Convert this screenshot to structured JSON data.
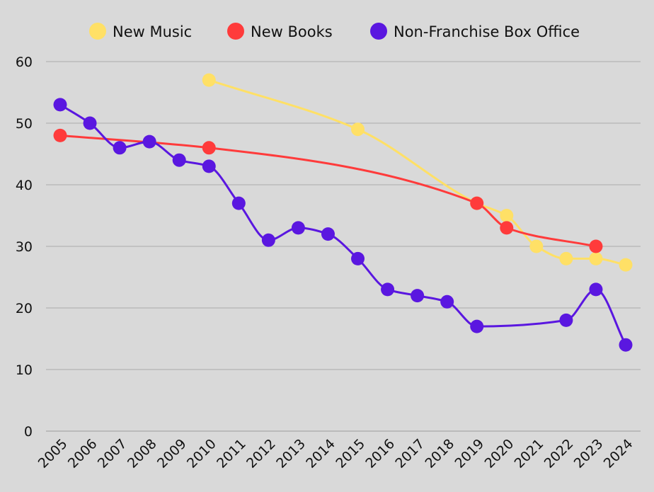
{
  "chart_data": {
    "type": "line",
    "title": "",
    "xlabel": "",
    "ylabel": "",
    "ylim": [
      0,
      60
    ],
    "yticks": [
      "0",
      "10",
      "20",
      "30",
      "40",
      "50",
      "60"
    ],
    "categories": [
      "2005",
      "2006",
      "2007",
      "2008",
      "2009",
      "2010",
      "2011",
      "2012",
      "2013",
      "2014",
      "2015",
      "2016",
      "2017",
      "2018",
      "2019",
      "2020",
      "2021",
      "2022",
      "2023",
      "2024"
    ],
    "grid": true,
    "legend_position": "top-center",
    "series": [
      {
        "name": "New Music",
        "color": "#ffe066",
        "points": [
          [
            2010,
            57
          ],
          [
            2015,
            49
          ],
          [
            2019,
            37
          ],
          [
            2020,
            35
          ],
          [
            2021,
            30
          ],
          [
            2022,
            28
          ],
          [
            2023,
            28
          ],
          [
            2024,
            27
          ]
        ]
      },
      {
        "name": "New Books",
        "color": "#ff3b3b",
        "points": [
          [
            2005,
            48
          ],
          [
            2010,
            46
          ],
          [
            2019,
            37
          ],
          [
            2020,
            33
          ],
          [
            2023,
            30
          ]
        ]
      },
      {
        "name": "Non-Franchise Box Office",
        "color": "#5a17e0",
        "points": [
          [
            2005,
            53
          ],
          [
            2006,
            50
          ],
          [
            2007,
            46
          ],
          [
            2008,
            47
          ],
          [
            2009,
            44
          ],
          [
            2010,
            43
          ],
          [
            2011,
            37
          ],
          [
            2012,
            31
          ],
          [
            2013,
            33
          ],
          [
            2014,
            32
          ],
          [
            2015,
            28
          ],
          [
            2016,
            23
          ],
          [
            2017,
            22
          ],
          [
            2018,
            21
          ],
          [
            2019,
            17
          ],
          [
            2022,
            18
          ],
          [
            2023,
            23
          ],
          [
            2024,
            14
          ]
        ]
      }
    ]
  }
}
